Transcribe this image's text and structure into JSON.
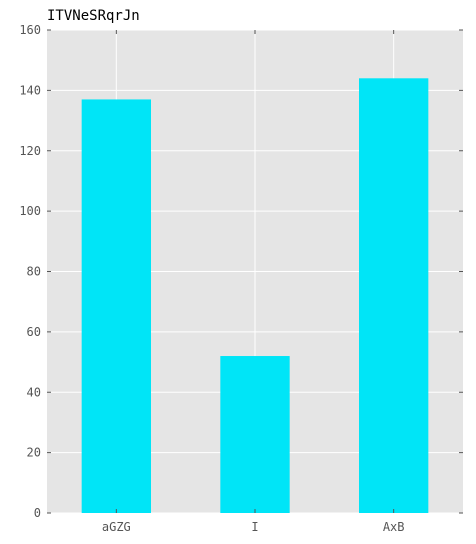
{
  "chart_data": {
    "type": "bar",
    "title": "ITVNeSRqrJn",
    "xlabel": "",
    "ylabel": "",
    "categories": [
      "aGZG",
      "I",
      "AxB"
    ],
    "values": [
      137,
      52,
      144
    ],
    "ylim": [
      0,
      160
    ],
    "yticks": [
      0,
      20,
      40,
      60,
      80,
      100,
      120,
      140,
      160
    ],
    "ytick_labels": [
      "0",
      "20",
      "40",
      "60",
      "80",
      "100",
      "120",
      "140",
      "160"
    ],
    "grid": true,
    "legend": "none",
    "bar_color": "#00e5f7",
    "background_color": "#e5e5e5",
    "grid_color": "#ffffff"
  }
}
